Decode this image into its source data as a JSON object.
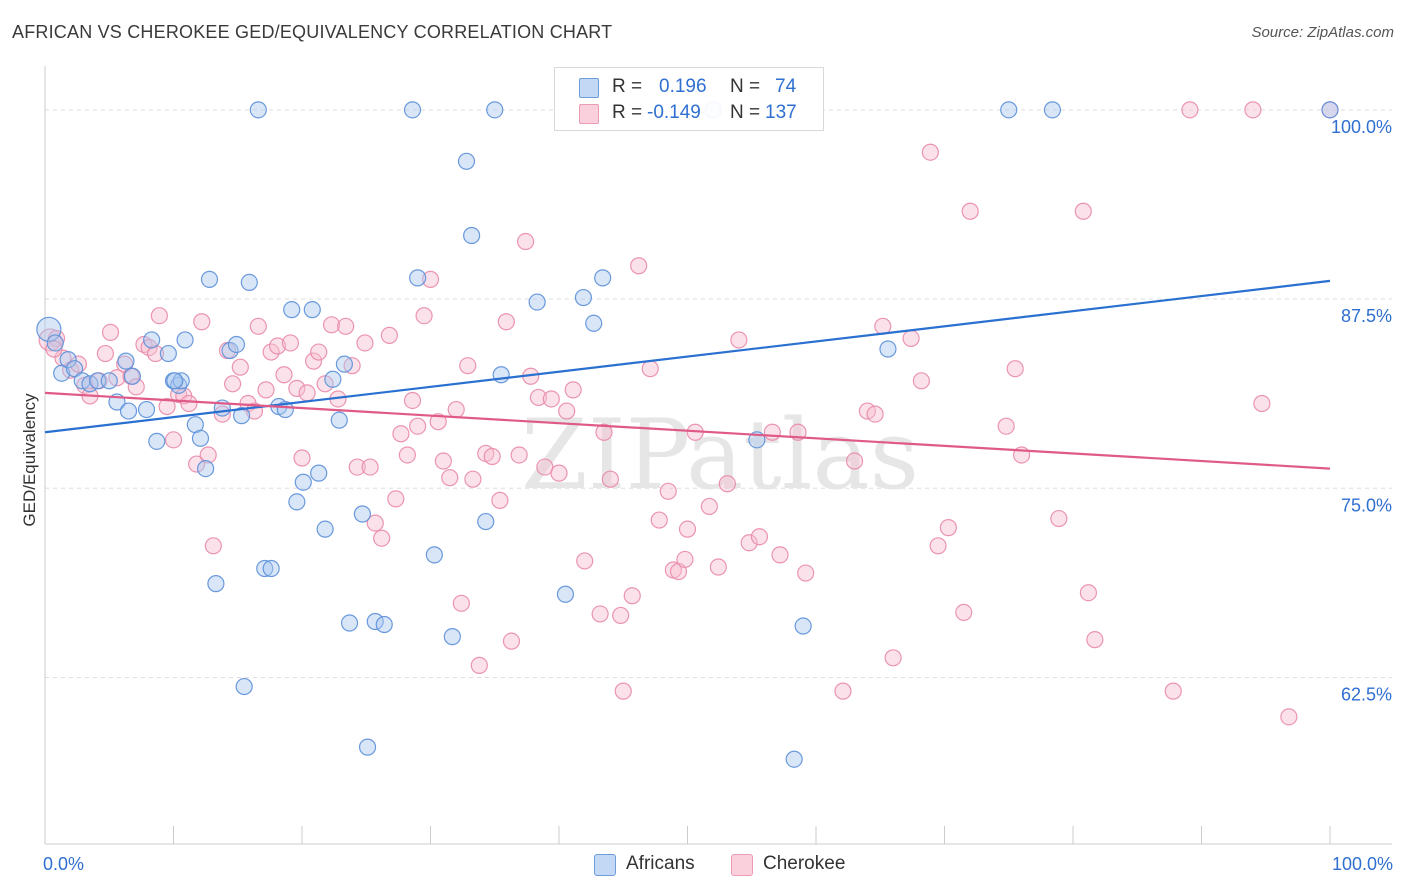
{
  "title": "AFRICAN VS CHEROKEE GED/EQUIVALENCY CORRELATION CHART",
  "source": "Source: ZipAtlas.com",
  "watermark": "ZIPatlas",
  "colors": {
    "africans_fill": "#a9c8f0",
    "africans_stroke": "#5b8fd9",
    "africans_line": "#2970d0",
    "cherokee_fill": "#f7bfd0",
    "cherokee_stroke": "#e98aa8",
    "cherokee_line": "#e05a87",
    "axis_label": "#2f6fd0",
    "grid": "#dddddd"
  },
  "legend": {
    "rows": [
      {
        "r_label": "R =",
        "r_value": "0.196",
        "n_label": "N =",
        "n_value": "74"
      },
      {
        "r_label": "R =",
        "r_value": "-0.149",
        "n_label": "N =",
        "n_value": "137"
      }
    ]
  },
  "bottom_legend": {
    "africans": "Africans",
    "cherokee": "Cherokee"
  },
  "chart_data": {
    "type": "scatter",
    "title": "AFRICAN VS CHEROKEE GED/EQUIVALENCY CORRELATION CHART",
    "xlabel": "",
    "ylabel": "GED/Equivalency",
    "xlim": [
      0,
      100
    ],
    "ylim": [
      51.5,
      102.5
    ],
    "x_tick_labels": [
      "0.0%",
      "100.0%"
    ],
    "y_ticks": [
      62.5,
      75.0,
      87.5,
      100.0
    ],
    "y_tick_labels": [
      "62.5%",
      "75.0%",
      "87.5%",
      "100.0%"
    ],
    "grid": true,
    "legend_position": "top-center",
    "series": [
      {
        "name": "Africans",
        "r": 0.196,
        "n": 74,
        "trend": [
          [
            0,
            78.7
          ],
          [
            100,
            88.7
          ]
        ],
        "points": [
          [
            0.3,
            85.5
          ],
          [
            0.8,
            84.6
          ],
          [
            1.3,
            82.6
          ],
          [
            1.8,
            83.5
          ],
          [
            2.3,
            82.9
          ],
          [
            2.9,
            82.1
          ],
          [
            3.5,
            81.9
          ],
          [
            4.1,
            82.1
          ],
          [
            5.0,
            82.1
          ],
          [
            5.6,
            80.7
          ],
          [
            6.3,
            83.4
          ],
          [
            6.8,
            82.4
          ],
          [
            7.9,
            80.2
          ],
          [
            8.3,
            84.8
          ],
          [
            8.7,
            78.1
          ],
          [
            10.0,
            82.1
          ],
          [
            10.4,
            81.8
          ],
          [
            10.6,
            82.1
          ],
          [
            10.9,
            84.8
          ],
          [
            11.7,
            79.2
          ],
          [
            12.1,
            78.3
          ],
          [
            12.5,
            76.3
          ],
          [
            12.8,
            88.8
          ],
          [
            13.3,
            68.7
          ],
          [
            13.8,
            80.3
          ],
          [
            14.4,
            84.1
          ],
          [
            14.9,
            84.5
          ],
          [
            15.3,
            79.8
          ],
          [
            15.5,
            61.9
          ],
          [
            15.9,
            88.6
          ],
          [
            16.6,
            100.0
          ],
          [
            17.1,
            69.7
          ],
          [
            17.6,
            69.7
          ],
          [
            18.2,
            80.4
          ],
          [
            18.7,
            80.2
          ],
          [
            19.2,
            86.8
          ],
          [
            19.6,
            74.1
          ],
          [
            20.1,
            75.4
          ],
          [
            20.8,
            86.8
          ],
          [
            21.3,
            76.0
          ],
          [
            21.8,
            72.3
          ],
          [
            22.4,
            82.2
          ],
          [
            22.9,
            79.5
          ],
          [
            23.3,
            83.2
          ],
          [
            23.7,
            66.1
          ],
          [
            24.7,
            73.3
          ],
          [
            25.1,
            57.9
          ],
          [
            25.7,
            66.2
          ],
          [
            26.4,
            66.0
          ],
          [
            28.6,
            100.0
          ],
          [
            29.0,
            88.9
          ],
          [
            30.3,
            70.6
          ],
          [
            31.7,
            65.2
          ],
          [
            32.8,
            96.6
          ],
          [
            33.2,
            91.7
          ],
          [
            34.3,
            72.8
          ],
          [
            35.0,
            100.0
          ],
          [
            35.5,
            82.5
          ],
          [
            38.3,
            87.3
          ],
          [
            40.5,
            68.0
          ],
          [
            41.9,
            87.6
          ],
          [
            42.7,
            85.9
          ],
          [
            43.4,
            88.9
          ],
          [
            52.0,
            100.0
          ],
          [
            55.4,
            78.2
          ],
          [
            58.3,
            57.1
          ],
          [
            59.0,
            65.9
          ],
          [
            65.6,
            84.2
          ],
          [
            75.0,
            100.0
          ],
          [
            78.4,
            100.0
          ],
          [
            10.1,
            82.1
          ],
          [
            6.5,
            80.1
          ],
          [
            9.6,
            83.9
          ],
          [
            100.0,
            100.0
          ]
        ]
      },
      {
        "name": "Cherokee",
        "r": -0.149,
        "n": 137,
        "trend": [
          [
            0,
            81.3
          ],
          [
            100,
            76.3
          ]
        ],
        "points": [
          [
            0.4,
            84.8
          ],
          [
            0.9,
            84.9
          ],
          [
            1.4,
            83.6
          ],
          [
            2.0,
            82.8
          ],
          [
            2.6,
            83.2
          ],
          [
            3.1,
            81.8
          ],
          [
            3.5,
            81.1
          ],
          [
            4.2,
            82.1
          ],
          [
            4.7,
            83.9
          ],
          [
            5.1,
            85.3
          ],
          [
            5.6,
            82.3
          ],
          [
            6.2,
            83.2
          ],
          [
            6.7,
            82.4
          ],
          [
            7.1,
            81.7
          ],
          [
            7.7,
            84.5
          ],
          [
            8.1,
            84.3
          ],
          [
            8.6,
            83.9
          ],
          [
            8.9,
            86.4
          ],
          [
            9.5,
            80.4
          ],
          [
            10.0,
            78.2
          ],
          [
            10.4,
            81.2
          ],
          [
            10.8,
            81.1
          ],
          [
            11.2,
            80.6
          ],
          [
            11.8,
            76.6
          ],
          [
            12.2,
            86.0
          ],
          [
            12.7,
            77.2
          ],
          [
            13.1,
            71.2
          ],
          [
            13.8,
            79.9
          ],
          [
            14.2,
            84.1
          ],
          [
            14.6,
            81.9
          ],
          [
            15.2,
            83.0
          ],
          [
            15.8,
            80.6
          ],
          [
            16.3,
            80.1
          ],
          [
            16.6,
            85.7
          ],
          [
            17.2,
            81.5
          ],
          [
            17.6,
            84.0
          ],
          [
            18.1,
            84.4
          ],
          [
            18.6,
            82.5
          ],
          [
            19.1,
            84.6
          ],
          [
            19.6,
            81.6
          ],
          [
            20.0,
            77.0
          ],
          [
            20.4,
            81.3
          ],
          [
            20.9,
            83.4
          ],
          [
            21.3,
            84.0
          ],
          [
            21.8,
            81.9
          ],
          [
            22.3,
            85.8
          ],
          [
            22.8,
            80.9
          ],
          [
            23.4,
            85.7
          ],
          [
            23.9,
            83.1
          ],
          [
            24.3,
            76.4
          ],
          [
            24.9,
            84.6
          ],
          [
            25.3,
            76.4
          ],
          [
            25.7,
            72.7
          ],
          [
            26.2,
            71.7
          ],
          [
            26.8,
            85.1
          ],
          [
            27.3,
            74.3
          ],
          [
            27.7,
            78.6
          ],
          [
            28.2,
            77.2
          ],
          [
            28.6,
            80.8
          ],
          [
            29.0,
            79.1
          ],
          [
            29.5,
            86.4
          ],
          [
            30.0,
            88.8
          ],
          [
            30.6,
            79.4
          ],
          [
            31.0,
            76.8
          ],
          [
            31.5,
            75.7
          ],
          [
            32.0,
            80.2
          ],
          [
            32.4,
            67.4
          ],
          [
            32.9,
            83.1
          ],
          [
            33.3,
            75.6
          ],
          [
            33.8,
            63.3
          ],
          [
            34.3,
            77.3
          ],
          [
            34.8,
            77.1
          ],
          [
            35.4,
            74.2
          ],
          [
            35.9,
            86.0
          ],
          [
            36.3,
            64.9
          ],
          [
            36.9,
            77.2
          ],
          [
            37.4,
            91.3
          ],
          [
            37.8,
            82.4
          ],
          [
            38.4,
            81.0
          ],
          [
            38.9,
            76.4
          ],
          [
            39.4,
            80.9
          ],
          [
            40.0,
            76.0
          ],
          [
            40.6,
            80.1
          ],
          [
            41.1,
            81.5
          ],
          [
            42.0,
            70.2
          ],
          [
            43.2,
            66.7
          ],
          [
            43.5,
            78.7
          ],
          [
            44.0,
            75.6
          ],
          [
            44.8,
            66.6
          ],
          [
            45.0,
            61.6
          ],
          [
            45.7,
            67.9
          ],
          [
            46.2,
            89.7
          ],
          [
            47.1,
            82.9
          ],
          [
            47.8,
            72.9
          ],
          [
            48.5,
            74.8
          ],
          [
            48.9,
            69.6
          ],
          [
            49.3,
            69.5
          ],
          [
            49.8,
            70.3
          ],
          [
            50.0,
            72.3
          ],
          [
            50.6,
            78.7
          ],
          [
            51.7,
            73.8
          ],
          [
            52.4,
            69.8
          ],
          [
            53.1,
            75.3
          ],
          [
            54.0,
            84.8
          ],
          [
            54.8,
            71.4
          ],
          [
            55.6,
            71.8
          ],
          [
            56.6,
            78.7
          ],
          [
            57.2,
            70.6
          ],
          [
            58.6,
            78.7
          ],
          [
            59.2,
            69.4
          ],
          [
            62.1,
            61.6
          ],
          [
            63.0,
            76.8
          ],
          [
            64.0,
            80.1
          ],
          [
            64.6,
            79.9
          ],
          [
            65.2,
            85.7
          ],
          [
            66.0,
            63.8
          ],
          [
            67.4,
            84.9
          ],
          [
            68.2,
            82.1
          ],
          [
            68.9,
            97.2
          ],
          [
            69.5,
            71.2
          ],
          [
            70.3,
            72.4
          ],
          [
            71.5,
            66.8
          ],
          [
            72.0,
            93.3
          ],
          [
            74.8,
            79.1
          ],
          [
            75.5,
            82.9
          ],
          [
            76.0,
            77.2
          ],
          [
            78.9,
            73.0
          ],
          [
            80.8,
            93.3
          ],
          [
            81.2,
            68.1
          ],
          [
            81.7,
            65.0
          ],
          [
            87.8,
            61.6
          ],
          [
            89.1,
            100.0
          ],
          [
            94.0,
            100.0
          ],
          [
            94.7,
            80.6
          ],
          [
            96.8,
            59.9
          ],
          [
            100.0,
            100.0
          ],
          [
            0.7,
            84.2
          ]
        ]
      }
    ]
  }
}
